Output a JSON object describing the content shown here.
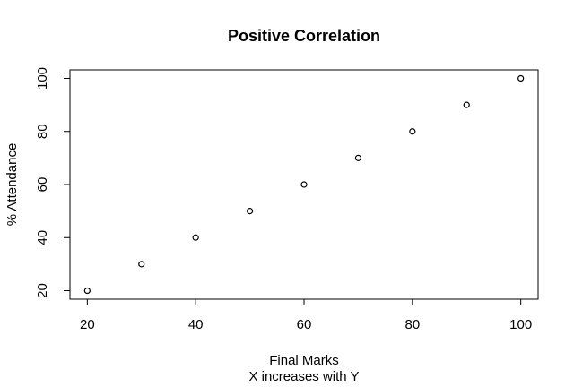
{
  "chart_data": {
    "type": "scatter",
    "title": "Positive Correlation",
    "subtitle": "X increases with Y",
    "x_label": "Final Marks",
    "y_label": "% Attendance",
    "x": [
      20,
      30,
      40,
      50,
      60,
      70,
      80,
      90,
      100
    ],
    "values": [
      20,
      30,
      40,
      50,
      60,
      70,
      80,
      90,
      100
    ],
    "color": "#000000",
    "xlim": [
      16.8,
      103.2
    ],
    "ylim": [
      16.8,
      103.2
    ],
    "xticks": [
      20,
      40,
      60,
      80,
      100
    ],
    "yticks": [
      20,
      40,
      60,
      80,
      100
    ],
    "grid": false
  }
}
